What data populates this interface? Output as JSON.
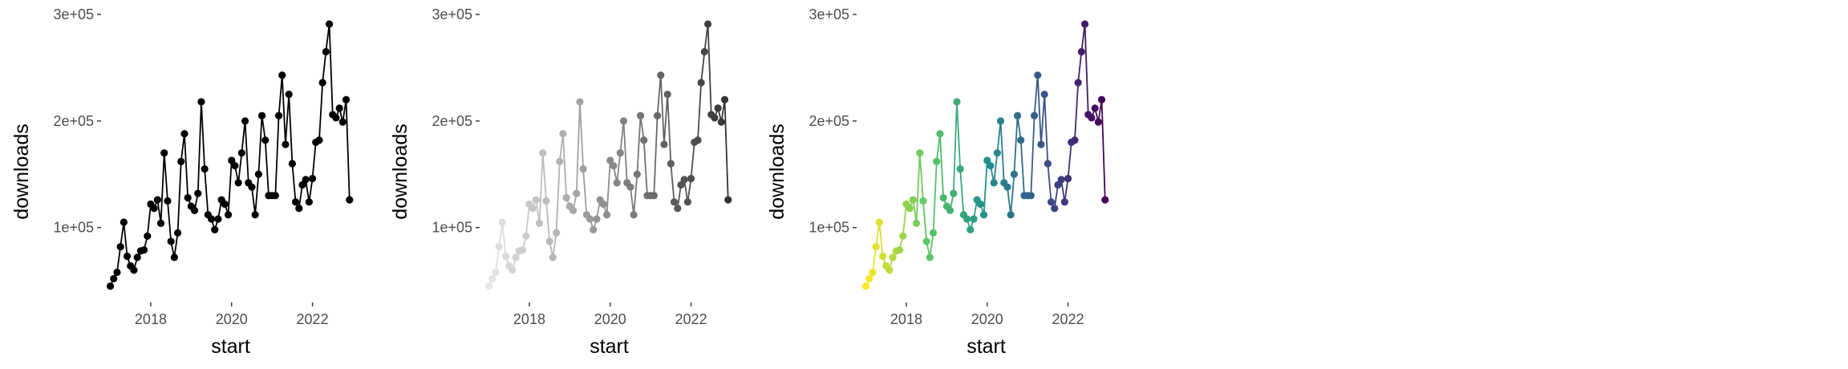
{
  "chart_data": [
    {
      "type": "line",
      "panel": "plain",
      "color_mode": "single",
      "color": "#000000",
      "xlabel": "start",
      "ylabel": "downloads",
      "x_ticks": [
        {
          "value": 2018,
          "label": "2018"
        },
        {
          "value": 2020,
          "label": "2020"
        },
        {
          "value": 2022,
          "label": "2022"
        }
      ],
      "y_ticks": [
        {
          "value": 100000,
          "label": "1e+05"
        },
        {
          "value": 200000,
          "label": "2e+05"
        },
        {
          "value": 300000,
          "label": "3e+05"
        }
      ],
      "xlim": [
        2016.85,
        2023.1
      ],
      "ylim": [
        35000,
        300000
      ],
      "grid": false,
      "legend": "none"
    },
    {
      "type": "line",
      "panel": "grey-gradient",
      "color_mode": "gradient",
      "gradient": [
        "#e6e6e6",
        "#333333"
      ],
      "xlabel": "start",
      "ylabel": "downloads",
      "x_ticks": [
        {
          "value": 2018,
          "label": "2018"
        },
        {
          "value": 2020,
          "label": "2020"
        },
        {
          "value": 2022,
          "label": "2022"
        }
      ],
      "y_ticks": [
        {
          "value": 100000,
          "label": "1e+05"
        },
        {
          "value": 200000,
          "label": "2e+05"
        },
        {
          "value": 300000,
          "label": "3e+05"
        }
      ],
      "xlim": [
        2016.85,
        2023.1
      ],
      "ylim": [
        35000,
        300000
      ],
      "grid": false,
      "legend": "none"
    },
    {
      "type": "line",
      "panel": "viridis-gradient",
      "color_mode": "gradient",
      "gradient": [
        "#fde725",
        "#5ec962",
        "#21918c",
        "#3b528b",
        "#440154"
      ],
      "xlabel": "start",
      "ylabel": "downloads",
      "x_ticks": [
        {
          "value": 2018,
          "label": "2018"
        },
        {
          "value": 2020,
          "label": "2020"
        },
        {
          "value": 2022,
          "label": "2022"
        }
      ],
      "y_ticks": [
        {
          "value": 100000,
          "label": "1e+05"
        },
        {
          "value": 200000,
          "label": "2e+05"
        },
        {
          "value": 300000,
          "label": "3e+05"
        }
      ],
      "xlim": [
        2016.85,
        2023.1
      ],
      "ylim": [
        35000,
        300000
      ],
      "grid": false,
      "legend": "none"
    }
  ],
  "series": {
    "x": [
      2017.0,
      2017.083,
      2017.167,
      2017.25,
      2017.333,
      2017.417,
      2017.5,
      2017.583,
      2017.667,
      2017.75,
      2017.833,
      2017.917,
      2018.0,
      2018.083,
      2018.167,
      2018.25,
      2018.333,
      2018.417,
      2018.5,
      2018.583,
      2018.667,
      2018.75,
      2018.833,
      2018.917,
      2019.0,
      2019.083,
      2019.167,
      2019.25,
      2019.333,
      2019.417,
      2019.5,
      2019.583,
      2019.667,
      2019.75,
      2019.833,
      2019.917,
      2020.0,
      2020.083,
      2020.167,
      2020.25,
      2020.333,
      2020.417,
      2020.5,
      2020.583,
      2020.667,
      2020.75,
      2020.833,
      2020.917,
      2021.0,
      2021.083,
      2021.167,
      2021.25,
      2021.333,
      2021.417,
      2021.5,
      2021.583,
      2021.667,
      2021.75,
      2021.833,
      2021.917,
      2022.0,
      2022.083,
      2022.167,
      2022.25,
      2022.333,
      2022.417,
      2022.5,
      2022.583,
      2022.667,
      2022.75,
      2022.833,
      2022.917
    ],
    "downloads": [
      45000,
      52000,
      58000,
      82000,
      105000,
      73000,
      64000,
      60000,
      72000,
      78000,
      79000,
      92000,
      122000,
      118000,
      126000,
      104000,
      170000,
      125000,
      87000,
      72000,
      95000,
      162000,
      188000,
      128000,
      120000,
      116000,
      132000,
      218000,
      155000,
      112000,
      108000,
      98000,
      108000,
      126000,
      122000,
      112000,
      163000,
      158000,
      142000,
      170000,
      200000,
      142000,
      138000,
      112000,
      150000,
      205000,
      182000,
      130000,
      130000,
      130000,
      205000,
      243000,
      178000,
      225000,
      160000,
      124000,
      118000,
      140000,
      145000,
      124000,
      146000,
      180000,
      182000,
      236000,
      265000,
      291000,
      206000,
      203000,
      212000,
      199000,
      220000,
      126000
    ]
  }
}
